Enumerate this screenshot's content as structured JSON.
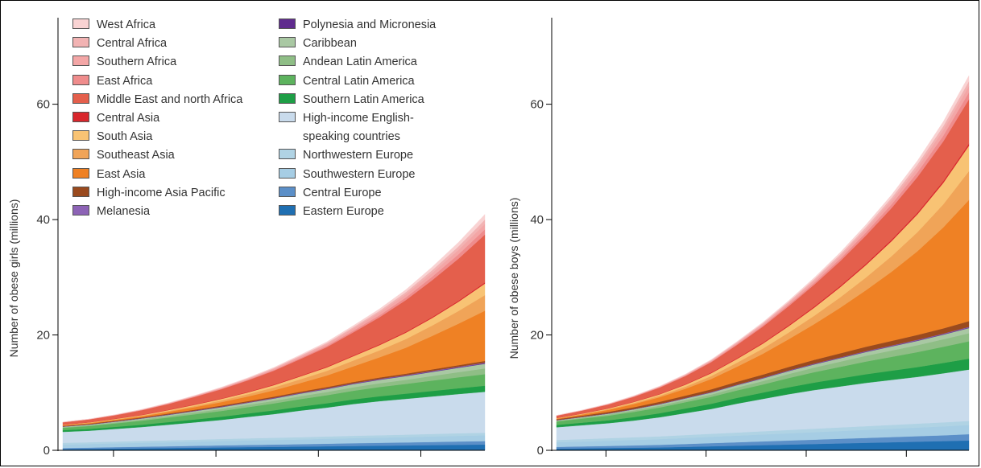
{
  "chart_data": [
    {
      "type": "area",
      "stacked": true,
      "ylabel": "Number of obese girls (millions)",
      "ylim": [
        0,
        75
      ],
      "yticks": [
        0,
        20,
        40,
        60
      ],
      "x": [
        0,
        1,
        2,
        3,
        4,
        5,
        6,
        7,
        8,
        9,
        10,
        11,
        12,
        13,
        14,
        15,
        16
      ],
      "series": [
        {
          "name": "Eastern Europe",
          "values": [
            0.2,
            0.25,
            0.3,
            0.35,
            0.4,
            0.45,
            0.5,
            0.55,
            0.6,
            0.65,
            0.7,
            0.75,
            0.8,
            0.85,
            0.9,
            0.95,
            1.0
          ]
        },
        {
          "name": "Central Europe",
          "values": [
            0.2,
            0.22,
            0.25,
            0.28,
            0.3,
            0.33,
            0.36,
            0.38,
            0.4,
            0.42,
            0.45,
            0.48,
            0.5,
            0.52,
            0.55,
            0.58,
            0.6
          ]
        },
        {
          "name": "Southwestern Europe",
          "values": [
            0.6,
            0.62,
            0.65,
            0.68,
            0.7,
            0.72,
            0.75,
            0.78,
            0.8,
            0.82,
            0.85,
            0.88,
            0.9,
            0.92,
            0.95,
            0.98,
            1.0
          ]
        },
        {
          "name": "Northwestern Europe",
          "values": [
            0.3,
            0.31,
            0.32,
            0.33,
            0.34,
            0.35,
            0.36,
            0.37,
            0.38,
            0.39,
            0.4,
            0.41,
            0.42,
            0.43,
            0.44,
            0.45,
            0.45
          ]
        },
        {
          "name": "High-income English-speaking countries",
          "values": [
            1.9,
            2.0,
            2.2,
            2.4,
            2.7,
            3.0,
            3.3,
            3.7,
            4.1,
            4.6,
            5.0,
            5.5,
            5.9,
            6.2,
            6.5,
            6.8,
            7.1
          ]
        },
        {
          "name": "Southern Latin America",
          "values": [
            0.3,
            0.32,
            0.35,
            0.4,
            0.45,
            0.5,
            0.55,
            0.6,
            0.65,
            0.7,
            0.75,
            0.8,
            0.85,
            0.9,
            0.95,
            1.0,
            1.05
          ]
        },
        {
          "name": "Central Latin America",
          "values": [
            0.4,
            0.5,
            0.6,
            0.7,
            0.8,
            0.9,
            1.0,
            1.1,
            1.2,
            1.3,
            1.4,
            1.5,
            1.6,
            1.7,
            1.8,
            1.9,
            2.0
          ]
        },
        {
          "name": "Andean Latin America",
          "values": [
            0.1,
            0.12,
            0.15,
            0.2,
            0.25,
            0.3,
            0.35,
            0.4,
            0.45,
            0.5,
            0.55,
            0.6,
            0.65,
            0.7,
            0.8,
            0.9,
            1.0
          ]
        },
        {
          "name": "Caribbean",
          "values": [
            0.1,
            0.12,
            0.15,
            0.18,
            0.2,
            0.25,
            0.3,
            0.35,
            0.4,
            0.45,
            0.5,
            0.55,
            0.6,
            0.65,
            0.7,
            0.75,
            0.8
          ]
        },
        {
          "name": "Polynesia and Micronesia",
          "values": [
            0.02,
            0.02,
            0.03,
            0.03,
            0.04,
            0.04,
            0.05,
            0.05,
            0.06,
            0.06,
            0.07,
            0.07,
            0.08,
            0.08,
            0.09,
            0.09,
            0.1
          ]
        },
        {
          "name": "Melanesia",
          "values": [
            0.02,
            0.02,
            0.03,
            0.03,
            0.04,
            0.04,
            0.05,
            0.05,
            0.06,
            0.06,
            0.07,
            0.07,
            0.08,
            0.08,
            0.09,
            0.09,
            0.1
          ]
        },
        {
          "name": "High-income Asia Pacific",
          "values": [
            0.1,
            0.1,
            0.12,
            0.13,
            0.15,
            0.16,
            0.18,
            0.19,
            0.2,
            0.21,
            0.22,
            0.23,
            0.24,
            0.25,
            0.26,
            0.27,
            0.3
          ]
        },
        {
          "name": "East Asia",
          "values": [
            0.1,
            0.12,
            0.15,
            0.2,
            0.3,
            0.45,
            0.6,
            0.8,
            1.1,
            1.5,
            2.0,
            2.7,
            3.5,
            4.5,
            5.8,
            7.2,
            8.7
          ]
        },
        {
          "name": "Southeast Asia",
          "values": [
            0.05,
            0.06,
            0.08,
            0.1,
            0.15,
            0.2,
            0.3,
            0.4,
            0.5,
            0.65,
            0.8,
            1.0,
            1.2,
            1.5,
            1.8,
            2.2,
            2.7
          ]
        },
        {
          "name": "South Asia",
          "values": [
            0.05,
            0.06,
            0.08,
            0.1,
            0.15,
            0.2,
            0.25,
            0.3,
            0.4,
            0.5,
            0.6,
            0.75,
            0.9,
            1.1,
            1.3,
            1.6,
            2.0
          ]
        },
        {
          "name": "Central Asia",
          "values": [
            0.02,
            0.03,
            0.04,
            0.05,
            0.06,
            0.07,
            0.08,
            0.09,
            0.1,
            0.11,
            0.12,
            0.13,
            0.14,
            0.15,
            0.16,
            0.17,
            0.2
          ]
        },
        {
          "name": "Middle East and north Africa",
          "values": [
            0.4,
            0.5,
            0.6,
            0.8,
            1.0,
            1.3,
            1.6,
            2.0,
            2.4,
            2.9,
            3.4,
            4.0,
            4.7,
            5.5,
            6.4,
            7.3,
            8.3
          ]
        },
        {
          "name": "East Africa",
          "values": [
            0.01,
            0.01,
            0.02,
            0.03,
            0.04,
            0.06,
            0.08,
            0.1,
            0.13,
            0.17,
            0.22,
            0.28,
            0.35,
            0.45,
            0.6,
            0.75,
            0.9
          ]
        },
        {
          "name": "Southern Africa",
          "values": [
            0.02,
            0.03,
            0.04,
            0.06,
            0.08,
            0.1,
            0.13,
            0.16,
            0.2,
            0.25,
            0.3,
            0.38,
            0.46,
            0.55,
            0.65,
            0.78,
            0.95
          ]
        },
        {
          "name": "Central Africa",
          "values": [
            0.01,
            0.01,
            0.02,
            0.03,
            0.04,
            0.05,
            0.07,
            0.09,
            0.12,
            0.15,
            0.19,
            0.24,
            0.3,
            0.38,
            0.48,
            0.6,
            0.75
          ]
        },
        {
          "name": "West Africa",
          "values": [
            0.01,
            0.01,
            0.02,
            0.03,
            0.04,
            0.05,
            0.07,
            0.09,
            0.12,
            0.15,
            0.2,
            0.26,
            0.33,
            0.42,
            0.55,
            0.7,
            0.9
          ]
        }
      ]
    },
    {
      "type": "area",
      "stacked": true,
      "ylabel": "Number of obese boys (millions)",
      "ylim": [
        0,
        75
      ],
      "yticks": [
        0,
        20,
        40,
        60
      ],
      "x": [
        0,
        1,
        2,
        3,
        4,
        5,
        6,
        7,
        8,
        9,
        10,
        11,
        12,
        13,
        14,
        15,
        16
      ],
      "series": [
        {
          "name": "Eastern Europe",
          "values": [
            0.3,
            0.35,
            0.4,
            0.45,
            0.5,
            0.6,
            0.7,
            0.8,
            0.9,
            1.0,
            1.1,
            1.2,
            1.3,
            1.4,
            1.5,
            1.6,
            1.7
          ]
        },
        {
          "name": "Central Europe",
          "values": [
            0.3,
            0.33,
            0.36,
            0.4,
            0.45,
            0.5,
            0.55,
            0.6,
            0.65,
            0.7,
            0.75,
            0.8,
            0.85,
            0.9,
            0.95,
            1.0,
            1.1
          ]
        },
        {
          "name": "Southwestern Europe",
          "values": [
            0.8,
            0.85,
            0.9,
            0.95,
            1.0,
            1.05,
            1.1,
            1.15,
            1.2,
            1.25,
            1.3,
            1.35,
            1.4,
            1.45,
            1.5,
            1.55,
            1.6
          ]
        },
        {
          "name": "Northwestern Europe",
          "values": [
            0.4,
            0.42,
            0.44,
            0.46,
            0.48,
            0.5,
            0.52,
            0.54,
            0.56,
            0.58,
            0.6,
            0.62,
            0.64,
            0.66,
            0.68,
            0.7,
            0.7
          ]
        },
        {
          "name": "High-income English-speaking countries",
          "values": [
            2.2,
            2.4,
            2.6,
            2.9,
            3.3,
            3.8,
            4.3,
            5.0,
            5.6,
            6.2,
            6.7,
            7.1,
            7.5,
            7.8,
            8.1,
            8.5,
            8.9
          ]
        },
        {
          "name": "Southern Latin America",
          "values": [
            0.4,
            0.45,
            0.5,
            0.6,
            0.7,
            0.8,
            0.9,
            1.0,
            1.1,
            1.2,
            1.3,
            1.4,
            1.5,
            1.6,
            1.7,
            1.8,
            1.9
          ]
        },
        {
          "name": "Central Latin America",
          "values": [
            0.6,
            0.7,
            0.8,
            0.9,
            1.0,
            1.1,
            1.2,
            1.3,
            1.4,
            1.6,
            1.8,
            2.0,
            2.2,
            2.4,
            2.6,
            2.8,
            3.0
          ]
        },
        {
          "name": "Andean Latin America",
          "values": [
            0.1,
            0.15,
            0.2,
            0.25,
            0.3,
            0.35,
            0.4,
            0.5,
            0.6,
            0.7,
            0.8,
            0.9,
            1.0,
            1.1,
            1.2,
            1.3,
            1.4
          ]
        },
        {
          "name": "Caribbean",
          "values": [
            0.1,
            0.12,
            0.15,
            0.2,
            0.25,
            0.3,
            0.35,
            0.4,
            0.45,
            0.5,
            0.55,
            0.6,
            0.65,
            0.7,
            0.75,
            0.8,
            0.9
          ]
        },
        {
          "name": "Polynesia and Micronesia",
          "values": [
            0.02,
            0.02,
            0.03,
            0.03,
            0.04,
            0.04,
            0.05,
            0.05,
            0.06,
            0.06,
            0.07,
            0.07,
            0.08,
            0.08,
            0.09,
            0.09,
            0.1
          ]
        },
        {
          "name": "Melanesia",
          "values": [
            0.02,
            0.02,
            0.03,
            0.03,
            0.04,
            0.04,
            0.05,
            0.05,
            0.06,
            0.06,
            0.07,
            0.07,
            0.08,
            0.08,
            0.09,
            0.09,
            0.1
          ]
        },
        {
          "name": "High-income Asia Pacific",
          "values": [
            0.15,
            0.2,
            0.25,
            0.3,
            0.35,
            0.4,
            0.45,
            0.5,
            0.55,
            0.6,
            0.65,
            0.7,
            0.75,
            0.8,
            0.85,
            0.9,
            1.0
          ]
        },
        {
          "name": "East Asia",
          "values": [
            0.1,
            0.2,
            0.35,
            0.55,
            0.8,
            1.2,
            1.8,
            2.6,
            3.6,
            4.8,
            6.2,
            7.9,
            9.8,
            12.0,
            14.5,
            17.5,
            21.0
          ]
        },
        {
          "name": "Southeast Asia",
          "values": [
            0.05,
            0.08,
            0.12,
            0.18,
            0.25,
            0.35,
            0.5,
            0.7,
            0.9,
            1.15,
            1.45,
            1.8,
            2.2,
            2.7,
            3.3,
            4.0,
            5.0
          ]
        },
        {
          "name": "South Asia",
          "values": [
            0.05,
            0.08,
            0.12,
            0.18,
            0.25,
            0.35,
            0.5,
            0.65,
            0.85,
            1.1,
            1.4,
            1.75,
            2.15,
            2.6,
            3.1,
            3.7,
            4.4
          ]
        },
        {
          "name": "Central Asia",
          "values": [
            0.02,
            0.03,
            0.04,
            0.05,
            0.07,
            0.09,
            0.11,
            0.13,
            0.15,
            0.17,
            0.19,
            0.21,
            0.23,
            0.25,
            0.27,
            0.3,
            0.35
          ]
        },
        {
          "name": "Middle East and north Africa",
          "values": [
            0.4,
            0.5,
            0.65,
            0.85,
            1.1,
            1.4,
            1.8,
            2.3,
            2.8,
            3.3,
            3.8,
            4.3,
            4.9,
            5.5,
            6.2,
            6.9,
            7.7
          ]
        },
        {
          "name": "East Africa",
          "values": [
            0.01,
            0.02,
            0.03,
            0.04,
            0.06,
            0.08,
            0.11,
            0.15,
            0.2,
            0.26,
            0.33,
            0.42,
            0.52,
            0.64,
            0.8,
            0.98,
            1.2
          ]
        },
        {
          "name": "Southern Africa",
          "values": [
            0.02,
            0.03,
            0.05,
            0.07,
            0.09,
            0.12,
            0.16,
            0.2,
            0.25,
            0.31,
            0.38,
            0.46,
            0.55,
            0.66,
            0.8,
            0.95,
            1.1
          ]
        },
        {
          "name": "Central Africa",
          "values": [
            0.01,
            0.02,
            0.03,
            0.04,
            0.05,
            0.07,
            0.09,
            0.12,
            0.15,
            0.19,
            0.24,
            0.3,
            0.37,
            0.46,
            0.57,
            0.7,
            0.85
          ]
        },
        {
          "name": "West Africa",
          "values": [
            0.01,
            0.02,
            0.03,
            0.04,
            0.05,
            0.07,
            0.09,
            0.12,
            0.16,
            0.2,
            0.26,
            0.33,
            0.41,
            0.51,
            0.63,
            0.78,
            0.95
          ]
        }
      ]
    }
  ],
  "legend": {
    "column1": [
      {
        "label": "West Africa",
        "color": "#f9d3d3"
      },
      {
        "label": "Central Africa",
        "color": "#f2b3b3"
      },
      {
        "label": "Southern Africa",
        "color": "#f3a6a6"
      },
      {
        "label": "East Africa",
        "color": "#ef8c8c"
      },
      {
        "label": "Middle East and north Africa",
        "color": "#e45f4c"
      },
      {
        "label": "Central Asia",
        "color": "#d8262c"
      },
      {
        "label": "South Asia",
        "color": "#f8c374"
      },
      {
        "label": "Southeast Asia",
        "color": "#f0a458"
      },
      {
        "label": "East Asia",
        "color": "#ef8124"
      },
      {
        "label": "High-income Asia Pacific",
        "color": "#9a4a1e"
      },
      {
        "label": "Melanesia",
        "color": "#8d63b6"
      }
    ],
    "column2": [
      {
        "label": "Polynesia and Micronesia",
        "color": "#5f2b8e"
      },
      {
        "label": "Caribbean",
        "color": "#a9c8a3"
      },
      {
        "label": "Andean Latin America",
        "color": "#8fbe86"
      },
      {
        "label": "Central Latin America",
        "color": "#5db35e"
      },
      {
        "label": "Southern Latin America",
        "color": "#1e9e46"
      },
      {
        "label": "High-income English-speaking countries",
        "color": "#c9dbec"
      },
      {
        "label": "Northwestern Europe",
        "color": "#b0d3e4"
      },
      {
        "label": "Southwestern Europe",
        "color": "#a6cde4"
      },
      {
        "label": "Central Europe",
        "color": "#5b8fc8"
      },
      {
        "label": "Eastern Europe",
        "color": "#1f6fb2"
      }
    ]
  },
  "series_colors": {
    "West Africa": "#f9d3d3",
    "Central Africa": "#f2b3b3",
    "Southern Africa": "#f3a6a6",
    "East Africa": "#ef8c8c",
    "Middle East and north Africa": "#e45f4c",
    "Central Asia": "#d8262c",
    "South Asia": "#f8c374",
    "Southeast Asia": "#f0a458",
    "East Asia": "#ef8124",
    "High-income Asia Pacific": "#9a4a1e",
    "Melanesia": "#8d63b6",
    "Polynesia and Micronesia": "#5f2b8e",
    "Caribbean": "#a9c8a3",
    "Andean Latin America": "#8fbe86",
    "Central Latin America": "#5db35e",
    "Southern Latin America": "#1e9e46",
    "High-income English-speaking countries": "#c9dbec",
    "Northwestern Europe": "#b0d3e4",
    "Southwestern Europe": "#a6cde4",
    "Central Europe": "#5b8fc8",
    "Eastern Europe": "#1f6fb2"
  }
}
